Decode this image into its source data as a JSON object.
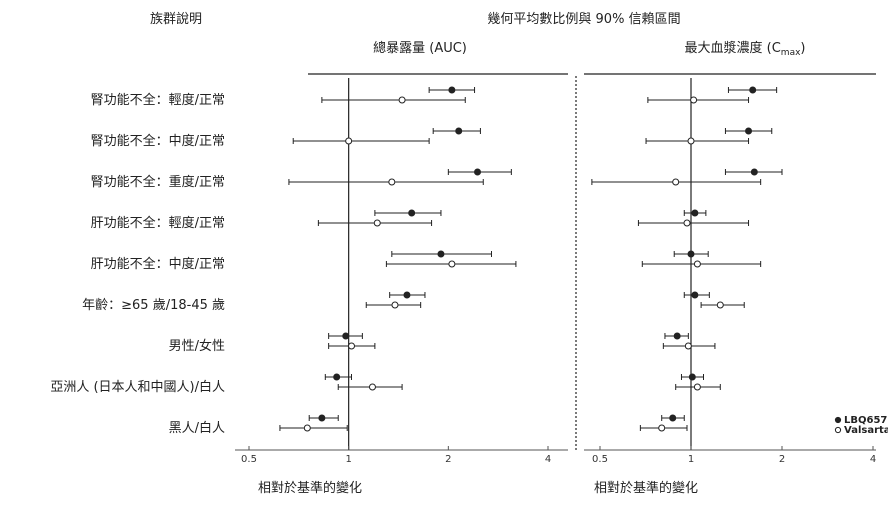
{
  "column_header": "族群說明",
  "title": "幾何平均數比例與 90% 信賴區間",
  "chart_data": [
    {
      "type": "forest",
      "panel_title": "總暴露量 (AUC)",
      "x_scale": "log",
      "xlim": [
        0.45,
        4.6
      ],
      "xticks": [
        "0.5",
        "1",
        "2",
        "4"
      ],
      "reference_line": 1,
      "xlabel": "相對於基準的變化",
      "categories": [
        "腎功能不全：輕度/正常",
        "腎功能不全：中度/正常",
        "腎功能不全：重度/正常",
        "肝功能不全：輕度/正常",
        "肝功能不全：中度/正常",
        "年齡：≥65 歲/18-45 歲",
        "男性/女性",
        "亞洲人 (日本人和中國人)/白人",
        "黑人/白人"
      ],
      "series": [
        {
          "name": "LBQ657",
          "marker": "filled",
          "estimate": [
            2.05,
            2.15,
            2.45,
            1.55,
            1.9,
            1.5,
            0.98,
            0.92,
            0.83
          ],
          "lower": [
            1.75,
            1.8,
            2.0,
            1.2,
            1.35,
            1.33,
            0.87,
            0.85,
            0.76
          ],
          "upper": [
            2.4,
            2.5,
            3.1,
            1.9,
            2.7,
            1.7,
            1.1,
            1.02,
            0.93
          ]
        },
        {
          "name": "Valsartan",
          "marker": "open",
          "estimate": [
            1.45,
            1.0,
            1.35,
            1.22,
            2.05,
            1.38,
            1.02,
            1.18,
            0.75
          ],
          "lower": [
            0.83,
            0.68,
            0.66,
            0.81,
            1.3,
            1.13,
            0.87,
            0.93,
            0.62
          ],
          "upper": [
            2.25,
            1.75,
            2.55,
            1.78,
            3.2,
            1.65,
            1.2,
            1.45,
            0.99
          ]
        }
      ]
    },
    {
      "type": "forest",
      "panel_title": "最大血漿濃度 (C",
      "panel_title_sub": "max",
      "panel_title_end": ")",
      "x_scale": "log",
      "xlim": [
        0.45,
        4.6
      ],
      "xticks": [
        "0.5",
        "1",
        "2",
        "4"
      ],
      "reference_line": 1,
      "xlabel": "相對於基準的變化",
      "categories": [
        "腎功能不全：輕度/正常",
        "腎功能不全：中度/正常",
        "腎功能不全：重度/正常",
        "肝功能不全：輕度/正常",
        "肝功能不全：中度/正常",
        "年齡：≥65 歲/18-45 歲",
        "男性/女性",
        "亞洲人 (日本人和中國人)/白人",
        "黑人/白人"
      ],
      "series": [
        {
          "name": "LBQ657",
          "marker": "filled",
          "estimate": [
            1.6,
            1.55,
            1.62,
            1.03,
            1.0,
            1.03,
            0.9,
            1.01,
            0.87
          ],
          "lower": [
            1.33,
            1.3,
            1.3,
            0.95,
            0.88,
            0.95,
            0.82,
            0.93,
            0.8
          ],
          "upper": [
            1.92,
            1.85,
            2.0,
            1.12,
            1.14,
            1.15,
            0.98,
            1.1,
            0.95
          ]
        },
        {
          "name": "Valsartan",
          "marker": "open",
          "estimate": [
            1.02,
            1.0,
            0.89,
            0.97,
            1.05,
            1.25,
            0.98,
            1.05,
            0.8
          ],
          "lower": [
            0.72,
            0.71,
            0.47,
            0.67,
            0.69,
            1.08,
            0.81,
            0.89,
            0.68
          ],
          "upper": [
            1.55,
            1.55,
            1.7,
            1.55,
            1.7,
            1.5,
            1.2,
            1.25,
            0.97
          ]
        }
      ]
    }
  ],
  "legend": [
    {
      "name": "LBQ657",
      "marker": "filled"
    },
    {
      "name": "Valsartan",
      "marker": "open"
    }
  ],
  "colors": {
    "ink": "#222222",
    "axis": "#555555"
  }
}
